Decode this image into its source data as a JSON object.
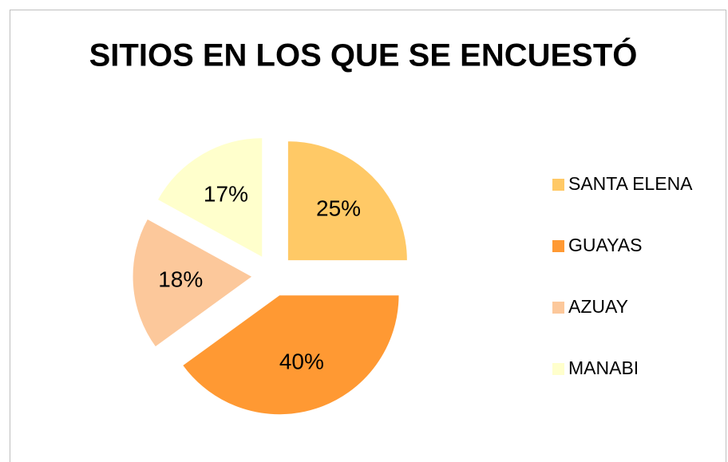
{
  "chart_data": {
    "type": "pie",
    "title": "SITIOS EN LOS QUE SE ENCUESTÓ",
    "categories": [
      "SANTA ELENA",
      "GUAYAS",
      "AZUAY",
      "MANABI"
    ],
    "values": [
      25,
      40,
      18,
      17
    ],
    "value_labels": [
      "25%",
      "40%",
      "18%",
      "17%"
    ],
    "colors": [
      "#ffc966",
      "#ff9933",
      "#fcc89b",
      "#ffffcc"
    ],
    "legend": "right"
  }
}
